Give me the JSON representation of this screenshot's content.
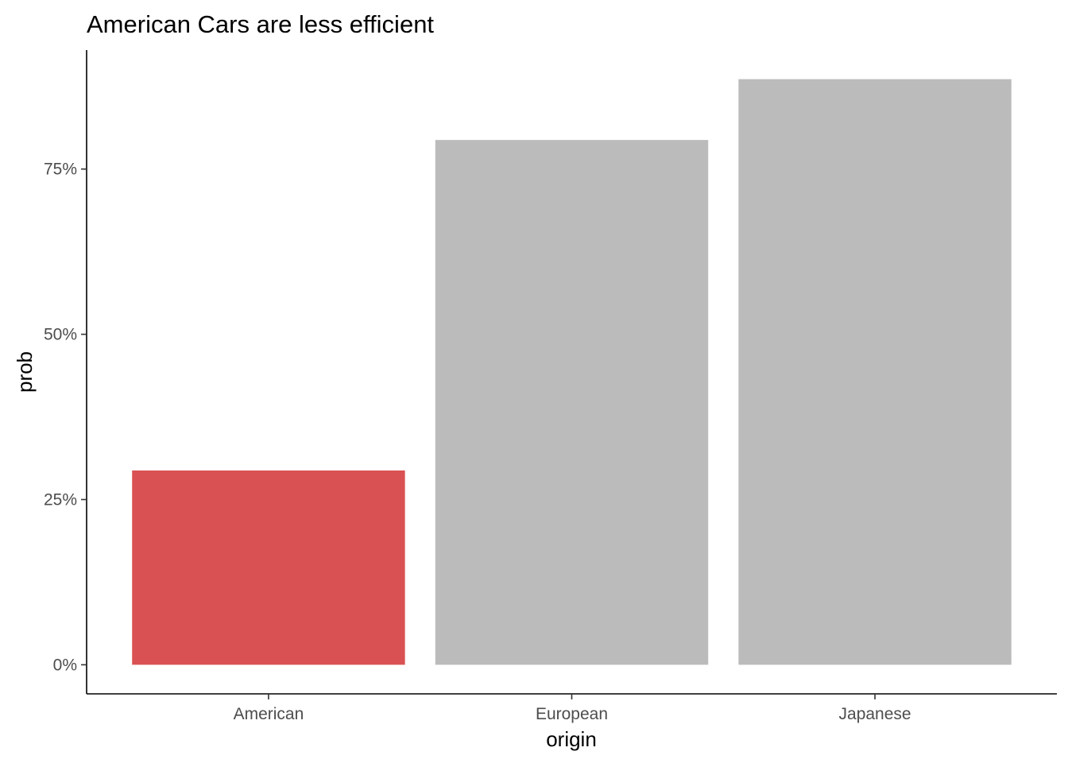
{
  "chart_data": {
    "type": "bar",
    "title": "American Cars are less efficient",
    "xlabel": "origin",
    "ylabel": "prob",
    "categories": [
      "American",
      "European",
      "Japanese"
    ],
    "values": [
      0.294,
      0.794,
      0.886
    ],
    "colors": [
      "#d95152",
      "#bbbbbb",
      "#bbbbbb"
    ],
    "y_ticks": [
      0,
      0.25,
      0.5,
      0.75
    ],
    "y_tick_labels": [
      "0%",
      "25%",
      "50%",
      "75%"
    ],
    "ylim": [
      -0.044,
      0.93
    ],
    "grid": false,
    "legend": "none"
  }
}
